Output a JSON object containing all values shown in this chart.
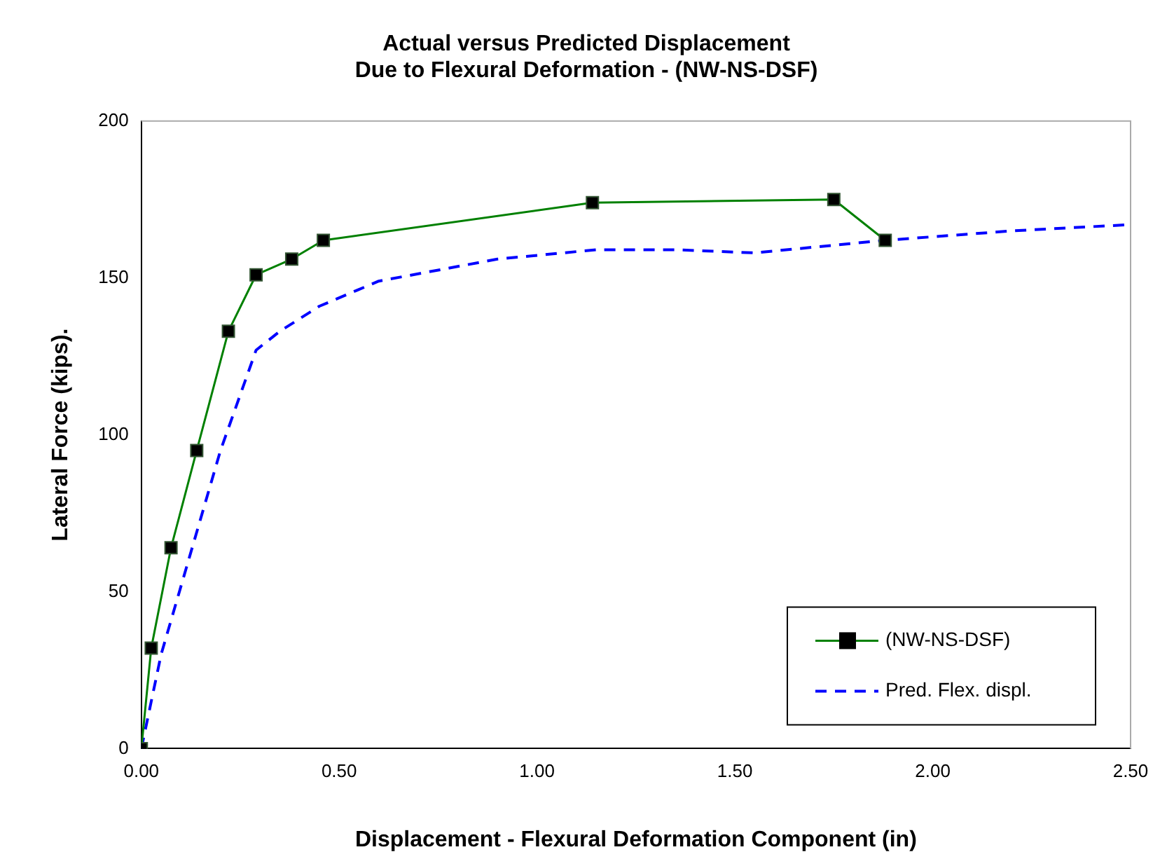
{
  "chart_data": {
    "type": "line",
    "title": "Actual versus Predicted Displacement\nDue to Flexural Deformation - (NW-NS-DSF)",
    "xlabel": "Displacement - Flexural Deformation Component (in)",
    "ylabel": "Lateral Force (kips).",
    "xlim": [
      0,
      2.5
    ],
    "xticks": [
      {
        "value": 0,
        "label": "0.00"
      },
      {
        "value": 0.5,
        "label": "0.50"
      },
      {
        "value": 1,
        "label": "1.00"
      },
      {
        "value": 1.5,
        "label": "1.50"
      },
      {
        "value": 2,
        "label": "2.00"
      },
      {
        "value": 2.5,
        "label": "2.50"
      }
    ],
    "ylim": [
      0,
      200
    ],
    "yticks": [
      0,
      50,
      100,
      150,
      200
    ],
    "grid": false,
    "legend": "bottom right",
    "series": [
      {
        "name": "(NW-NS-DSF)",
        "color": "#008000",
        "marker": "square",
        "line_style": "solid",
        "x": [
          0,
          0.025,
          0.075,
          0.14,
          0.22,
          0.29,
          0.38,
          0.46,
          1.14,
          1.75,
          1.88
        ],
        "values": [
          0,
          32,
          64,
          95,
          133,
          151,
          156,
          162,
          174,
          175,
          162
        ]
      },
      {
        "name": "Pred. Flex. displ.",
        "color": "#0000ff",
        "marker": "none",
        "line_style": "dashed",
        "x": [
          0,
          0.05,
          0.2,
          0.29,
          0.35,
          0.45,
          0.6,
          0.9,
          1.15,
          1.35,
          1.55,
          1.88,
          2.2,
          2.5
        ],
        "values": [
          0,
          30,
          95,
          127,
          133,
          141,
          149,
          156,
          159,
          159,
          158,
          162,
          165,
          167
        ]
      }
    ]
  }
}
